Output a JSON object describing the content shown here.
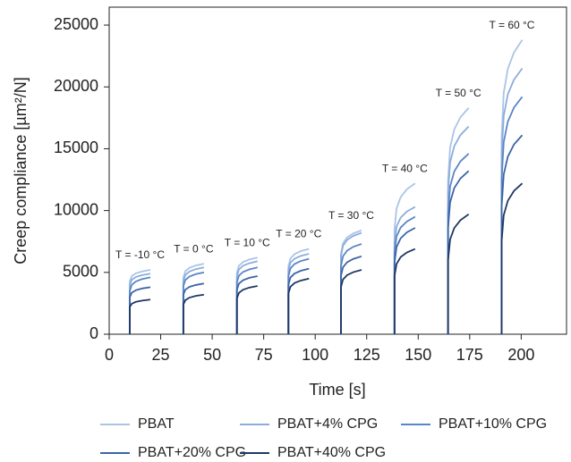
{
  "chart_data": {
    "type": "line",
    "xlabel": "Time [s]",
    "ylabel": "Creep compliance [µm²/N]",
    "xlim": [
      0,
      222
    ],
    "ylim": [
      0,
      26450
    ],
    "xticks": [
      0,
      25,
      50,
      75,
      100,
      125,
      150,
      175,
      200
    ],
    "yticks": [
      0,
      5000,
      10000,
      15000,
      20000,
      25000
    ],
    "grid": false,
    "annotations": [
      "T = -10 °C",
      "T = 0 °C",
      "T = 10 °C",
      "T = 20 °C",
      "T = 30 °C",
      "T = 40 °C",
      "T = 50 °C",
      "T = 60 °C"
    ],
    "x": [
      10,
      10,
      11,
      13,
      16,
      20,
      null,
      36,
      36,
      37,
      39,
      42,
      46,
      null,
      62,
      62,
      63,
      65,
      68,
      72,
      null,
      87,
      87,
      88,
      90,
      93,
      97,
      null,
      112.5,
      112.5,
      113.5,
      115.5,
      118.5,
      122.5,
      null,
      138.5,
      138.5,
      139.5,
      141.5,
      144.5,
      148.5,
      null,
      164.5,
      164.5,
      165.5,
      167.5,
      170.5,
      174.5,
      null,
      190.5,
      190.5,
      191.5,
      193.5,
      196.5,
      200.5
    ],
    "series": [
      {
        "name": "PBAT",
        "color": "#aac4e8",
        "values": [
          0,
          4300,
          4710,
          4930,
          5080,
          5200,
          null,
          0,
          4600,
          5100,
          5370,
          5560,
          5700,
          null,
          0,
          5000,
          5540,
          5840,
          6040,
          6200,
          null,
          0,
          5500,
          6130,
          6480,
          6720,
          6900,
          null,
          0,
          6500,
          7360,
          7830,
          8150,
          8400,
          null,
          0,
          8500,
          10170,
          11090,
          11720,
          12200,
          null,
          0,
          12500,
          15110,
          16560,
          17550,
          18300,
          null,
          0,
          16000,
          19510,
          21460,
          22790,
          23800
        ]
      },
      {
        "name": "PBAT+4% CPG",
        "color": "#8caddb",
        "values": [
          0,
          4000,
          4410,
          4630,
          4780,
          4900,
          null,
          0,
          4300,
          4800,
          5070,
          5260,
          5400,
          null,
          0,
          4700,
          5240,
          5540,
          5740,
          5900,
          null,
          0,
          5200,
          5790,
          6110,
          6330,
          6500,
          null,
          0,
          6300,
          7160,
          7630,
          7950,
          8200,
          null,
          0,
          7400,
          8710,
          9430,
          9920,
          10300,
          null,
          0,
          11500,
          13890,
          15210,
          16110,
          16800,
          null,
          0,
          14500,
          17650,
          19400,
          20590,
          21500
        ]
      },
      {
        "name": "PBAT+10% CPG",
        "color": "#5b86c5",
        "values": [
          0,
          3500,
          4000,
          4270,
          4460,
          4600,
          null,
          0,
          3900,
          4400,
          4670,
          4860,
          5000,
          null,
          0,
          4200,
          4740,
          5040,
          5240,
          5400,
          null,
          0,
          4700,
          5330,
          5680,
          5920,
          6100,
          null,
          0,
          5500,
          6310,
          6760,
          7070,
          7300,
          null,
          0,
          6600,
          7910,
          8630,
          9120,
          9500,
          null,
          0,
          9800,
          11960,
          13160,
          13980,
          14600,
          null,
          0,
          12500,
          15520,
          17190,
          18330,
          19200
        ]
      },
      {
        "name": "PBAT+20% CPG",
        "color": "#3c65a8",
        "values": [
          0,
          3000,
          3360,
          3560,
          3700,
          3800,
          null,
          0,
          3200,
          3610,
          3830,
          3980,
          4100,
          null,
          0,
          3600,
          4100,
          4370,
          4560,
          4700,
          null,
          0,
          4000,
          4590,
          4910,
          5130,
          5300,
          null,
          0,
          4700,
          5420,
          5820,
          6090,
          6300,
          null,
          0,
          5800,
          7060,
          7760,
          8240,
          8600,
          null,
          0,
          8600,
          10670,
          11820,
          12600,
          13200,
          null,
          0,
          10300,
          12910,
          14360,
          15350,
          16100
        ]
      },
      {
        "name": "PBAT+40% CPG",
        "color": "#1f3864",
        "values": [
          0,
          2200,
          2470,
          2620,
          2720,
          2800,
          null,
          0,
          2400,
          2760,
          2960,
          3100,
          3200,
          null,
          0,
          2900,
          3350,
          3600,
          3770,
          3900,
          null,
          0,
          3300,
          3840,
          4140,
          4340,
          4500,
          null,
          0,
          3800,
          4430,
          4780,
          5020,
          5200,
          null,
          0,
          4700,
          5690,
          6240,
          6610,
          6900,
          null,
          0,
          6000,
          7670,
          8590,
          9220,
          9700,
          null,
          0,
          7500,
          9620,
          10790,
          11590,
          12200
        ]
      }
    ]
  }
}
